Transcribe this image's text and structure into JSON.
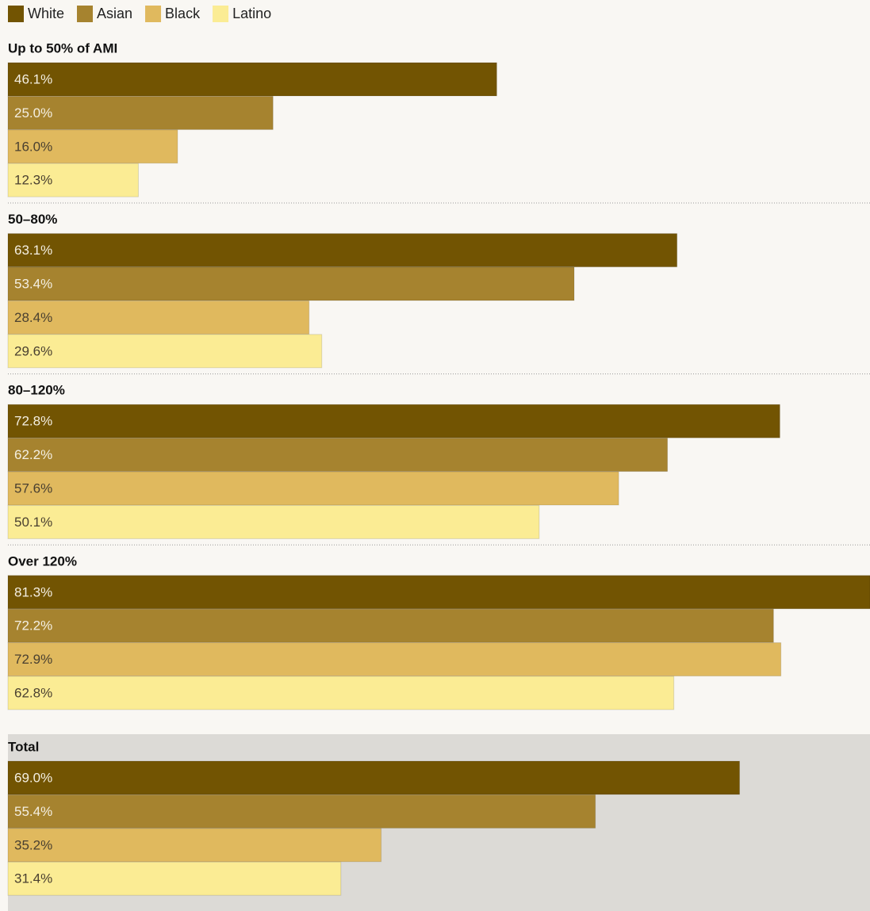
{
  "chart_data": {
    "type": "bar",
    "orientation": "horizontal",
    "categories": [
      "Up to 50% of AMI",
      "50–80%",
      "80–120%",
      "Over 120%",
      "Total"
    ],
    "series": [
      {
        "name": "White",
        "color": "#725402",
        "values": [
          46.1,
          63.1,
          72.8,
          81.3,
          69.0
        ],
        "value_labels": [
          "46.1%",
          "63.1%",
          "72.8%",
          "81.3%",
          "69.0%"
        ]
      },
      {
        "name": "Asian",
        "color": "#a6832f",
        "values": [
          25.0,
          53.4,
          62.2,
          72.2,
          55.4
        ],
        "value_labels": [
          "25.0%",
          "53.4%",
          "62.2%",
          "72.2%",
          "55.4%"
        ]
      },
      {
        "name": "Black",
        "color": "#e0b95e",
        "values": [
          16.0,
          28.4,
          57.6,
          72.9,
          35.2
        ],
        "value_labels": [
          "16.0%",
          "28.4%",
          "57.6%",
          "72.9%",
          "35.2%"
        ]
      },
      {
        "name": "Latino",
        "color": "#fbec94",
        "values": [
          12.3,
          29.6,
          50.1,
          62.8,
          31.4
        ],
        "value_labels": [
          "12.3%",
          "29.6%",
          "50.1%",
          "62.8%",
          "31.4%"
        ]
      }
    ]
  }
}
